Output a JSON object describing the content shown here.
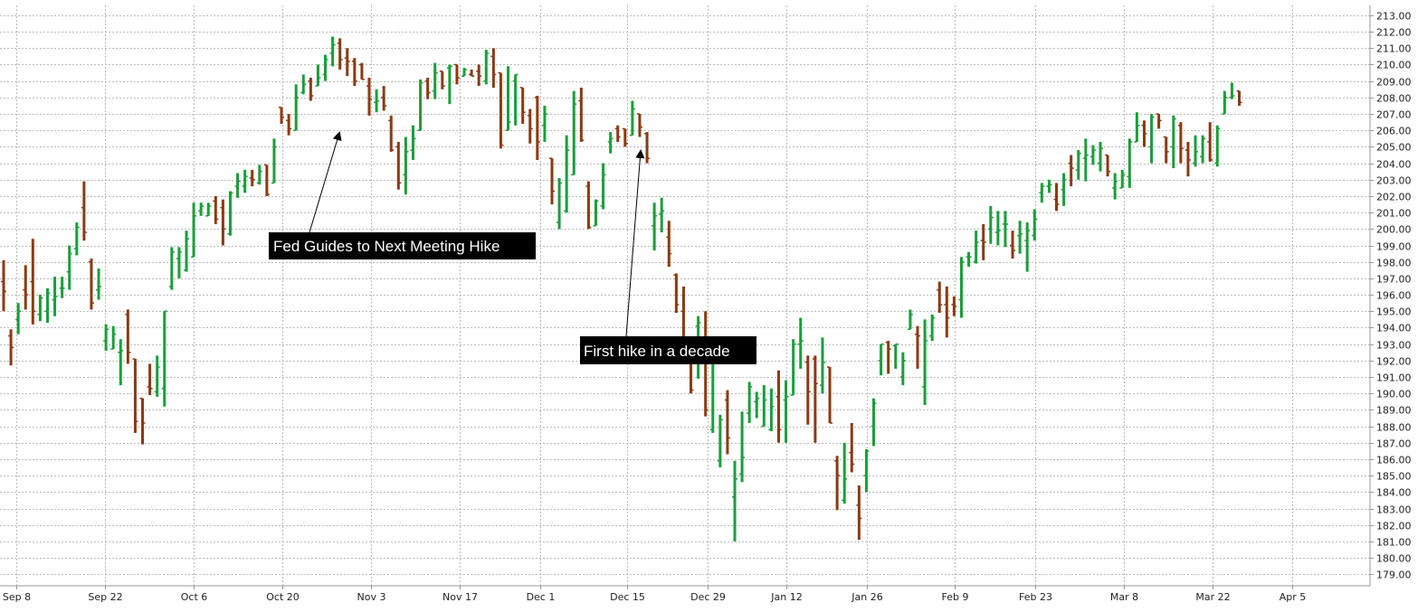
{
  "chart_data": {
    "type": "ohlc",
    "x_tick_labels": [
      "Sep 8",
      "Sep 22",
      "Oct 6",
      "Oct 20",
      "Nov 3",
      "Nov 17",
      "Dec 1",
      "Dec 15",
      "Dec 29",
      "Jan 12",
      "Jan 26",
      "Feb 9",
      "Feb 23",
      "Mar 8",
      "Mar 22",
      "Apr 5"
    ],
    "y_ticks": [
      "179.00",
      "180.00",
      "181.00",
      "182.00",
      "183.00",
      "184.00",
      "185.00",
      "186.00",
      "187.00",
      "188.00",
      "189.00",
      "190.00",
      "191.00",
      "192.00",
      "193.00",
      "194.00",
      "195.00",
      "196.00",
      "197.00",
      "198.00",
      "199.00",
      "200.00",
      "201.00",
      "202.00",
      "203.00",
      "204.00",
      "205.00",
      "206.00",
      "207.00",
      "208.00",
      "209.00",
      "210.00",
      "211.00",
      "212.00",
      "213.00"
    ],
    "ylim": [
      178.3,
      213.6
    ],
    "y_axis_position": "right",
    "grid": true,
    "colors": {
      "up": "#1a9e3c",
      "down": "#8b3a12",
      "grid": "#bbbbbb",
      "axis": "#999999",
      "annotation_bg": "#000000",
      "annotation_text": "#ffffff"
    },
    "bars": [
      [
        196.8,
        198.1,
        195.0,
        196.2
      ],
      [
        193.5,
        193.9,
        191.7,
        192.8
      ],
      [
        194.5,
        195.5,
        193.6,
        195.0
      ],
      [
        196.3,
        197.8,
        195.1,
        196.0
      ],
      [
        196.8,
        199.4,
        194.2,
        195.0
      ],
      [
        194.8,
        196.0,
        194.4,
        195.8
      ],
      [
        195.0,
        196.4,
        194.3,
        196.1
      ],
      [
        195.7,
        197.1,
        194.7,
        195.9
      ],
      [
        196.4,
        197.1,
        195.8,
        196.4
      ],
      [
        197.4,
        199.0,
        196.3,
        198.5
      ],
      [
        198.8,
        200.4,
        198.4,
        200.1
      ],
      [
        201.3,
        202.9,
        199.3,
        199.8
      ],
      [
        198.0,
        198.2,
        195.1,
        195.5
      ],
      [
        196.3,
        197.6,
        195.7,
        196.5
      ],
      [
        193.2,
        194.2,
        192.6,
        193.9
      ],
      [
        192.7,
        194.1,
        192.7,
        193.6
      ],
      [
        192.5,
        193.3,
        190.5,
        192.6
      ],
      [
        194.8,
        195.1,
        191.8,
        192.5
      ],
      [
        192.1,
        192.0,
        187.6,
        188.3
      ],
      [
        189.7,
        189.7,
        186.9,
        188.2
      ],
      [
        190.4,
        191.8,
        189.9,
        190.3
      ],
      [
        190.1,
        192.3,
        189.8,
        191.6
      ],
      [
        190.3,
        195.0,
        189.2,
        195.0
      ],
      [
        196.5,
        198.9,
        196.3,
        198.6
      ],
      [
        198.2,
        198.9,
        197.0,
        198.6
      ],
      [
        197.5,
        199.9,
        197.4,
        199.4
      ],
      [
        198.3,
        201.6,
        198.3,
        200.8
      ],
      [
        201.1,
        201.6,
        200.8,
        201.4
      ],
      [
        200.8,
        201.6,
        200.8,
        201.4
      ],
      [
        201.7,
        202.0,
        200.3,
        200.6
      ],
      [
        201.3,
        201.8,
        199.0,
        200.0
      ],
      [
        199.7,
        202.3,
        199.6,
        202.2
      ],
      [
        202.6,
        203.4,
        201.9,
        202.9
      ],
      [
        202.6,
        203.6,
        202.2,
        203.2
      ],
      [
        203.1,
        203.6,
        202.6,
        203.0
      ],
      [
        202.8,
        203.9,
        202.7,
        203.5
      ],
      [
        203.9,
        203.6,
        202.0,
        202.1
      ],
      [
        202.8,
        205.5,
        202.8,
        205.0
      ],
      [
        207.4,
        207.4,
        206.4,
        206.8
      ],
      [
        206.6,
        207.0,
        205.7,
        206.1
      ],
      [
        206.0,
        208.8,
        206.1,
        208.0
      ],
      [
        208.3,
        209.4,
        208.2,
        208.8
      ],
      [
        209.0,
        209.2,
        207.8,
        208.1
      ],
      [
        208.7,
        210.0,
        208.7,
        209.2
      ],
      [
        209.4,
        210.6,
        209.0,
        210.3
      ],
      [
        210.7,
        211.7,
        209.9,
        211.2
      ],
      [
        211.3,
        211.6,
        209.7,
        210.3
      ],
      [
        210.4,
        211.0,
        209.3,
        210.2
      ],
      [
        210.2,
        210.4,
        208.7,
        209.0
      ],
      [
        210.0,
        210.1,
        209.2,
        209.1
      ],
      [
        208.7,
        209.2,
        206.9,
        207.9
      ],
      [
        207.7,
        208.5,
        207.1,
        207.8
      ],
      [
        208.0,
        208.7,
        207.2,
        207.5
      ],
      [
        206.6,
        206.9,
        204.7,
        204.8
      ],
      [
        205.0,
        205.3,
        202.4,
        202.8
      ],
      [
        203.3,
        205.6,
        202.1,
        204.7
      ],
      [
        204.8,
        206.3,
        204.2,
        205.5
      ],
      [
        206.0,
        209.1,
        206.1,
        208.9
      ],
      [
        209.0,
        209.2,
        207.9,
        208.3
      ],
      [
        208.4,
        210.1,
        207.9,
        209.5
      ],
      [
        209.6,
        209.4,
        208.5,
        208.7
      ],
      [
        209.8,
        210.0,
        207.6,
        209.9
      ],
      [
        210.0,
        209.9,
        208.8,
        209.2
      ],
      [
        209.3,
        209.8,
        209.3,
        209.7
      ],
      [
        209.4,
        209.7,
        209.5,
        209.3
      ],
      [
        209.6,
        210.0,
        208.7,
        209.3
      ],
      [
        209.0,
        210.9,
        208.8,
        210.7
      ],
      [
        210.5,
        211.0,
        208.6,
        209.4
      ],
      [
        209.5,
        208.9,
        204.9,
        205.1
      ],
      [
        206.0,
        209.9,
        206.0,
        206.5
      ],
      [
        209.0,
        209.4,
        206.3,
        209.4
      ],
      [
        208.6,
        208.5,
        206.4,
        207.1
      ],
      [
        206.9,
        207.3,
        205.2,
        206.1
      ],
      [
        208.0,
        208.1,
        204.2,
        205.3
      ],
      [
        206.3,
        207.5,
        205.3,
        207.0
      ],
      [
        204.3,
        204.2,
        201.5,
        202.3
      ],
      [
        200.4,
        203.1,
        200.0,
        202.8
      ],
      [
        201.1,
        205.7,
        201.0,
        204.8
      ],
      [
        203.3,
        208.4,
        203.8,
        207.6
      ],
      [
        207.8,
        208.6,
        205.3,
        205.4
      ],
      [
        202.6,
        202.9,
        200.0,
        200.1
      ],
      [
        200.2,
        201.8,
        200.5,
        201.7
      ],
      [
        201.4,
        204.0,
        201.2,
        203.3
      ],
      [
        205.3,
        205.9,
        204.6,
        205.5
      ],
      [
        206.1,
        206.3,
        205.3,
        205.6
      ],
      [
        206.1,
        206.1,
        205.0,
        205.2
      ],
      [
        205.7,
        207.8,
        206.2,
        207.3
      ],
      [
        207.0,
        207.0,
        205.6,
        206.2
      ],
      [
        205.8,
        205.9,
        204.0,
        204.3
      ],
      [
        200.2,
        201.6,
        198.7,
        200.8
      ],
      [
        200.9,
        201.9,
        199.8,
        201.1
      ],
      [
        199.5,
        200.5,
        197.7,
        198.5
      ],
      [
        197.2,
        197.3,
        194.9,
        195.4
      ],
      [
        195.0,
        196.5,
        192.5,
        193.3
      ],
      [
        192.4,
        193.3,
        190.0,
        190.2
      ],
      [
        194.1,
        194.7,
        190.9,
        194.3
      ],
      [
        193.1,
        195.0,
        188.6,
        189.0
      ],
      [
        187.8,
        192.9,
        187.6,
        192.0
      ],
      [
        185.9,
        188.7,
        185.5,
        188.4
      ],
      [
        189.6,
        190.2,
        186.3,
        187.3
      ],
      [
        183.7,
        185.9,
        181.0,
        184.8
      ],
      [
        185.1,
        188.9,
        184.6,
        186.1
      ],
      [
        188.8,
        190.7,
        188.2,
        190.4
      ],
      [
        189.5,
        190.1,
        188.5,
        189.7
      ],
      [
        188.0,
        190.5,
        188.2,
        189.6
      ],
      [
        187.8,
        190.3,
        187.7,
        189.2
      ],
      [
        189.8,
        191.4,
        187.0,
        187.8
      ],
      [
        189.6,
        190.8,
        187.0,
        189.8
      ],
      [
        189.9,
        193.3,
        189.9,
        193.0
      ],
      [
        193.0,
        194.6,
        191.5,
        193.2
      ],
      [
        191.9,
        192.3,
        188.1,
        190.1
      ],
      [
        192.1,
        192.3,
        187.0,
        190.6
      ],
      [
        190.5,
        193.4,
        190.0,
        191.9
      ],
      [
        191.6,
        191.5,
        188.3,
        188.2
      ],
      [
        185.9,
        186.2,
        182.9,
        185.0
      ],
      [
        183.5,
        187.0,
        183.3,
        184.8
      ],
      [
        186.4,
        188.2,
        185.2,
        185.7
      ],
      [
        183.2,
        184.4,
        181.1,
        182.4
      ],
      [
        185.0,
        186.6,
        184.0,
        186.5
      ],
      [
        188.0,
        189.7,
        186.8,
        189.4
      ],
      [
        192.0,
        192.9,
        191.1,
        193.0
      ],
      [
        193.1,
        193.2,
        191.2,
        192.7
      ],
      [
        192.9,
        192.6,
        191.5,
        193.0
      ],
      [
        191.0,
        192.5,
        190.5,
        192.0
      ],
      [
        193.9,
        195.1,
        193.9,
        194.8
      ],
      [
        193.6,
        194.1,
        191.5,
        193.5
      ],
      [
        190.4,
        194.5,
        189.3,
        193.2
      ],
      [
        193.5,
        194.8,
        193.2,
        194.6
      ],
      [
        196.3,
        196.8,
        194.9,
        195.4
      ],
      [
        195.4,
        196.5,
        193.4,
        194.6
      ],
      [
        195.4,
        195.9,
        194.7,
        195.3
      ],
      [
        195.7,
        198.3,
        194.6,
        198.0
      ],
      [
        198.3,
        198.6,
        197.7,
        198.3
      ],
      [
        198.0,
        199.9,
        197.9,
        199.2
      ],
      [
        199.3,
        200.3,
        198.1,
        199.2
      ],
      [
        200.0,
        201.4,
        199.1,
        200.7
      ],
      [
        199.8,
        201.1,
        199.0,
        199.9
      ],
      [
        200.3,
        201.1,
        198.9,
        200.3
      ],
      [
        199.0,
        199.9,
        198.2,
        198.7
      ],
      [
        199.6,
        200.5,
        198.5,
        199.7
      ],
      [
        199.3,
        200.4,
        197.4,
        199.9
      ],
      [
        199.6,
        201.2,
        199.3,
        200.6
      ],
      [
        202.2,
        202.8,
        201.6,
        202.6
      ],
      [
        202.6,
        203.0,
        202.2,
        202.7
      ],
      [
        201.8,
        202.8,
        201.1,
        201.5
      ],
      [
        202.4,
        203.4,
        201.4,
        203.0
      ],
      [
        204.0,
        204.5,
        202.6,
        203.7
      ],
      [
        203.6,
        204.8,
        203.0,
        204.6
      ],
      [
        204.3,
        205.5,
        202.9,
        204.5
      ],
      [
        204.4,
        205.1,
        203.9,
        204.8
      ],
      [
        204.0,
        205.3,
        203.5,
        204.9
      ],
      [
        204.5,
        204.4,
        203.2,
        203.5
      ],
      [
        202.5,
        203.4,
        201.8,
        202.9
      ],
      [
        202.5,
        203.6,
        202.5,
        203.3
      ],
      [
        203.2,
        205.5,
        202.5,
        205.3
      ],
      [
        205.3,
        207.1,
        205.3,
        206.3
      ],
      [
        206.3,
        206.6,
        205.0,
        205.8
      ],
      [
        205.0,
        207.0,
        204.0,
        206.8
      ],
      [
        207.0,
        206.9,
        206.1,
        206.6
      ],
      [
        205.6,
        205.2,
        204.0,
        204.7
      ],
      [
        205.0,
        206.9,
        203.7,
        206.7
      ],
      [
        206.3,
        206.5,
        204.0,
        204.9
      ],
      [
        204.8,
        205.3,
        203.2,
        204.2
      ],
      [
        204.0,
        205.7,
        203.8,
        204.7
      ],
      [
        204.4,
        205.7,
        204.0,
        205.5
      ],
      [
        205.3,
        206.5,
        204.1,
        204.2
      ],
      [
        204.0,
        206.3,
        203.8,
        206.1
      ],
      [
        207.0,
        208.4,
        207.0,
        208.0
      ],
      [
        208.0,
        208.9,
        207.9,
        208.1
      ],
      [
        208.4,
        208.4,
        207.5,
        207.7
      ]
    ],
    "annotations": [
      {
        "label": "Fed Guides to Next Meeting Hike"
      },
      {
        "label": "First hike in a decade"
      }
    ]
  }
}
